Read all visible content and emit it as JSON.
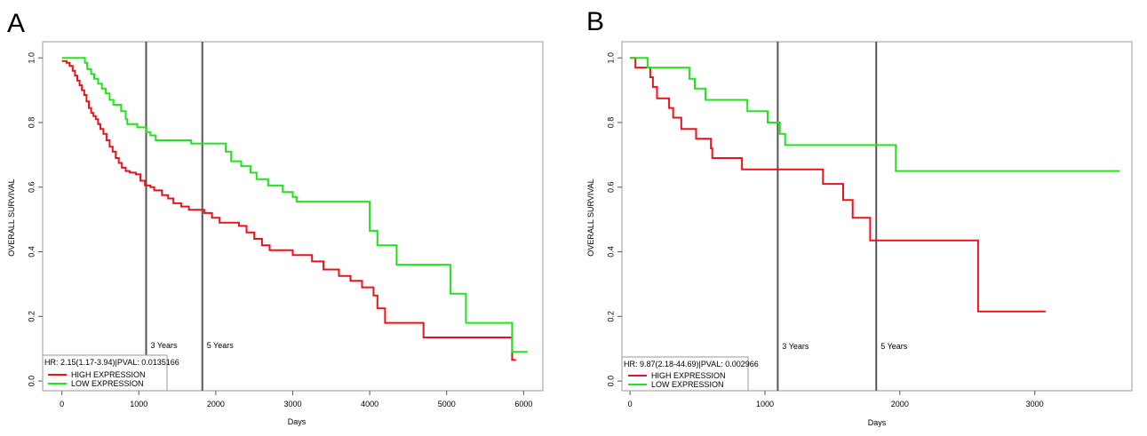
{
  "chart_data": [
    {
      "panel": "A",
      "type": "line",
      "xlabel": "Days",
      "ylabel": "OVERALL SURVIVAL",
      "xlim": [
        -250,
        6250
      ],
      "ylim": [
        -0.03,
        1.05
      ],
      "xticks": [
        0,
        1000,
        2000,
        3000,
        4000,
        5000,
        6000
      ],
      "xtick_labels": [
        "0",
        "1000",
        "2000",
        "3000",
        "4000",
        "5000",
        "6000"
      ],
      "yticks": [
        0.0,
        0.2,
        0.4,
        0.6,
        0.8,
        1.0
      ],
      "ytick_labels": [
        "0.0",
        "0.2",
        "0.4",
        "0.6",
        "0.8",
        "1.0"
      ],
      "markers": [
        {
          "x": 1095,
          "label": "3 Years"
        },
        {
          "x": 1825,
          "label": "5 Years"
        }
      ],
      "stats": "HR: 2.15(1.17-3.94)|PVAL: 0.0135166",
      "legend_position": "bottom-left",
      "series": [
        {
          "name": "HIGH EXPRESSION",
          "color": "#e8141c",
          "points": [
            [
              0,
              0.99
            ],
            [
              60,
              0.985
            ],
            [
              100,
              0.975
            ],
            [
              140,
              0.96
            ],
            [
              170,
              0.945
            ],
            [
              200,
              0.93
            ],
            [
              230,
              0.915
            ],
            [
              260,
              0.9
            ],
            [
              290,
              0.885
            ],
            [
              320,
              0.865
            ],
            [
              350,
              0.845
            ],
            [
              380,
              0.83
            ],
            [
              410,
              0.82
            ],
            [
              440,
              0.81
            ],
            [
              470,
              0.795
            ],
            [
              500,
              0.78
            ],
            [
              540,
              0.765
            ],
            [
              580,
              0.745
            ],
            [
              620,
              0.725
            ],
            [
              660,
              0.71
            ],
            [
              700,
              0.69
            ],
            [
              740,
              0.675
            ],
            [
              780,
              0.66
            ],
            [
              830,
              0.65
            ],
            [
              880,
              0.645
            ],
            [
              960,
              0.64
            ],
            [
              1020,
              0.62
            ],
            [
              1080,
              0.605
            ],
            [
              1150,
              0.6
            ],
            [
              1200,
              0.59
            ],
            [
              1300,
              0.575
            ],
            [
              1380,
              0.565
            ],
            [
              1450,
              0.55
            ],
            [
              1550,
              0.54
            ],
            [
              1650,
              0.53
            ],
            [
              1850,
              0.52
            ],
            [
              1950,
              0.505
            ],
            [
              2050,
              0.49
            ],
            [
              2300,
              0.48
            ],
            [
              2400,
              0.46
            ],
            [
              2500,
              0.44
            ],
            [
              2600,
              0.42
            ],
            [
              2700,
              0.405
            ],
            [
              3000,
              0.39
            ],
            [
              3250,
              0.37
            ],
            [
              3400,
              0.345
            ],
            [
              3600,
              0.325
            ],
            [
              3750,
              0.31
            ],
            [
              3900,
              0.29
            ],
            [
              4050,
              0.265
            ],
            [
              4100,
              0.225
            ],
            [
              4200,
              0.18
            ],
            [
              4700,
              0.135
            ],
            [
              5850,
              0.065
            ],
            [
              5900,
              0.065
            ]
          ]
        },
        {
          "name": "LOW EXPRESSION",
          "color": "#22e31c",
          "points": [
            [
              0,
              1.0
            ],
            [
              300,
              0.985
            ],
            [
              330,
              0.965
            ],
            [
              380,
              0.95
            ],
            [
              420,
              0.935
            ],
            [
              470,
              0.92
            ],
            [
              520,
              0.905
            ],
            [
              570,
              0.89
            ],
            [
              620,
              0.87
            ],
            [
              670,
              0.855
            ],
            [
              770,
              0.835
            ],
            [
              830,
              0.81
            ],
            [
              850,
              0.795
            ],
            [
              980,
              0.785
            ],
            [
              1100,
              0.77
            ],
            [
              1150,
              0.76
            ],
            [
              1220,
              0.745
            ],
            [
              1680,
              0.735
            ],
            [
              2130,
              0.71
            ],
            [
              2200,
              0.68
            ],
            [
              2330,
              0.665
            ],
            [
              2450,
              0.645
            ],
            [
              2530,
              0.625
            ],
            [
              2680,
              0.605
            ],
            [
              2870,
              0.585
            ],
            [
              3000,
              0.57
            ],
            [
              3050,
              0.555
            ],
            [
              4000,
              0.465
            ],
            [
              4100,
              0.42
            ],
            [
              4350,
              0.36
            ],
            [
              5050,
              0.27
            ],
            [
              5250,
              0.18
            ],
            [
              5850,
              0.09
            ],
            [
              6050,
              0.09
            ]
          ]
        }
      ]
    },
    {
      "panel": "B",
      "type": "line",
      "xlabel": "Days",
      "ylabel": "OVERALL SURVIVAL",
      "xlim": [
        -60,
        3720
      ],
      "ylim": [
        -0.03,
        1.05
      ],
      "xticks": [
        0,
        1000,
        2000,
        3000
      ],
      "xtick_labels": [
        "0",
        "1000",
        "2000",
        "3000"
      ],
      "yticks": [
        0.0,
        0.2,
        0.4,
        0.6,
        0.8,
        1.0
      ],
      "ytick_labels": [
        "0.0",
        "0.2",
        "0.4",
        "0.6",
        "0.8",
        "1.0"
      ],
      "markers": [
        {
          "x": 1095,
          "label": "3 Years"
        },
        {
          "x": 1825,
          "label": "5 Years"
        }
      ],
      "stats": "HR: 9.87(2.18-44.69)|PVAL: 0.002966",
      "legend_position": "bottom-left",
      "series": [
        {
          "name": "HIGH EXPRESSION",
          "color": "#e8141c",
          "points": [
            [
              0,
              1.0
            ],
            [
              40,
              0.97
            ],
            [
              150,
              0.94
            ],
            [
              170,
              0.91
            ],
            [
              200,
              0.875
            ],
            [
              290,
              0.845
            ],
            [
              320,
              0.815
            ],
            [
              380,
              0.78
            ],
            [
              490,
              0.75
            ],
            [
              600,
              0.72
            ],
            [
              610,
              0.69
            ],
            [
              830,
              0.655
            ],
            [
              1430,
              0.61
            ],
            [
              1580,
              0.56
            ],
            [
              1650,
              0.505
            ],
            [
              1780,
              0.435
            ],
            [
              2580,
              0.215
            ],
            [
              3080,
              0.215
            ]
          ]
        },
        {
          "name": "LOW EXPRESSION",
          "color": "#22e31c",
          "points": [
            [
              0,
              1.0
            ],
            [
              130,
              0.97
            ],
            [
              440,
              0.935
            ],
            [
              480,
              0.905
            ],
            [
              560,
              0.87
            ],
            [
              870,
              0.835
            ],
            [
              1020,
              0.8
            ],
            [
              1110,
              0.765
            ],
            [
              1150,
              0.73
            ],
            [
              1970,
              0.65
            ],
            [
              3630,
              0.65
            ]
          ]
        }
      ]
    }
  ]
}
